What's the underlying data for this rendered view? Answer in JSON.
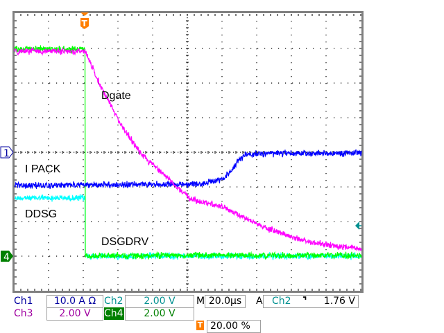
{
  "colors": {
    "ch1": "#0000ff",
    "ch2": "#00ffff",
    "ch3": "#ff00ff",
    "ch4": "#00ff00",
    "ch1_text": "#0000a0",
    "ch2_text": "#009090",
    "ch3_text": "#a000a0",
    "ch4_bg": "#008000",
    "trigger": "#ff7f00",
    "graticule": "#000000",
    "frame": "#808080"
  },
  "markers": {
    "ch1": "1",
    "ch4": "4",
    "trigger": "T"
  },
  "status": {
    "ch1_label": "Ch1",
    "ch1_scale": "10.0 A Ω",
    "ch2_label": "Ch2",
    "ch2_scale": "2.00 V",
    "ch3_label": "Ch3",
    "ch3_scale": "2.00 V",
    "ch4_label": "Ch4",
    "ch4_scale": "2.00 V",
    "timebase_label": "M",
    "timebase": "20.0µs",
    "trigger_label": "A",
    "trigger_source": "Ch2",
    "trigger_slope": "falling-edge-icon",
    "trigger_slope_glyph": "⌝",
    "trigger_level": "1.76 V",
    "trigger_position": "20.00 %"
  },
  "chart_data": {
    "type": "line",
    "xlabel": "",
    "ylabel": "",
    "x_unit": "µs",
    "y_unit": "div",
    "xlim": [
      -40,
      160
    ],
    "ylim": [
      -4,
      4
    ],
    "grid": true,
    "trigger_time": 0,
    "trigger_level_div": -2.12,
    "series": [
      {
        "name": "I PACK",
        "channel": "Ch1",
        "color": "#0000ff",
        "points": [
          [
            -40,
            -0.96
          ],
          [
            68,
            -0.92
          ],
          [
            76,
            -0.82
          ],
          [
            81,
            -0.74
          ],
          [
            86,
            -0.46
          ],
          [
            89,
            -0.26
          ],
          [
            92,
            -0.1
          ],
          [
            95,
            -0.04
          ],
          [
            160,
            -0.02
          ]
        ]
      },
      {
        "name": "DDSG",
        "channel": "Ch2",
        "color": "#00ffff",
        "points": [
          [
            -40,
            -1.32
          ],
          [
            0.6,
            -1.32
          ],
          [
            0.8,
            -3.0
          ],
          [
            160,
            -3.0
          ]
        ]
      },
      {
        "name": "Dgate",
        "channel": "Ch3",
        "color": "#ff00ff",
        "points": [
          [
            -40,
            2.92
          ],
          [
            0.8,
            2.92
          ],
          [
            9.2,
            1.94
          ],
          [
            21.2,
            0.8
          ],
          [
            33.2,
            -0.06
          ],
          [
            50.8,
            -0.86
          ],
          [
            61.2,
            -1.34
          ],
          [
            81.2,
            -1.6
          ],
          [
            102.8,
            -2.14
          ],
          [
            122.8,
            -2.5
          ],
          [
            142.8,
            -2.7
          ],
          [
            160,
            -2.8
          ]
        ]
      },
      {
        "name": "DSGDRV",
        "channel": "Ch4",
        "color": "#00ff00",
        "points": [
          [
            -40,
            2.98
          ],
          [
            0.6,
            2.98
          ],
          [
            0.8,
            -2.98
          ],
          [
            160,
            -2.98
          ]
        ]
      }
    ],
    "annotations": [
      {
        "text": "Dgate",
        "t": 10,
        "div": 1.66
      },
      {
        "text": "I PACK",
        "t": -34,
        "div": -0.46
      },
      {
        "text": "DDSG",
        "t": -34,
        "div": -1.76
      },
      {
        "text": "DSGDRV",
        "t": 10,
        "div": -2.56
      }
    ]
  }
}
